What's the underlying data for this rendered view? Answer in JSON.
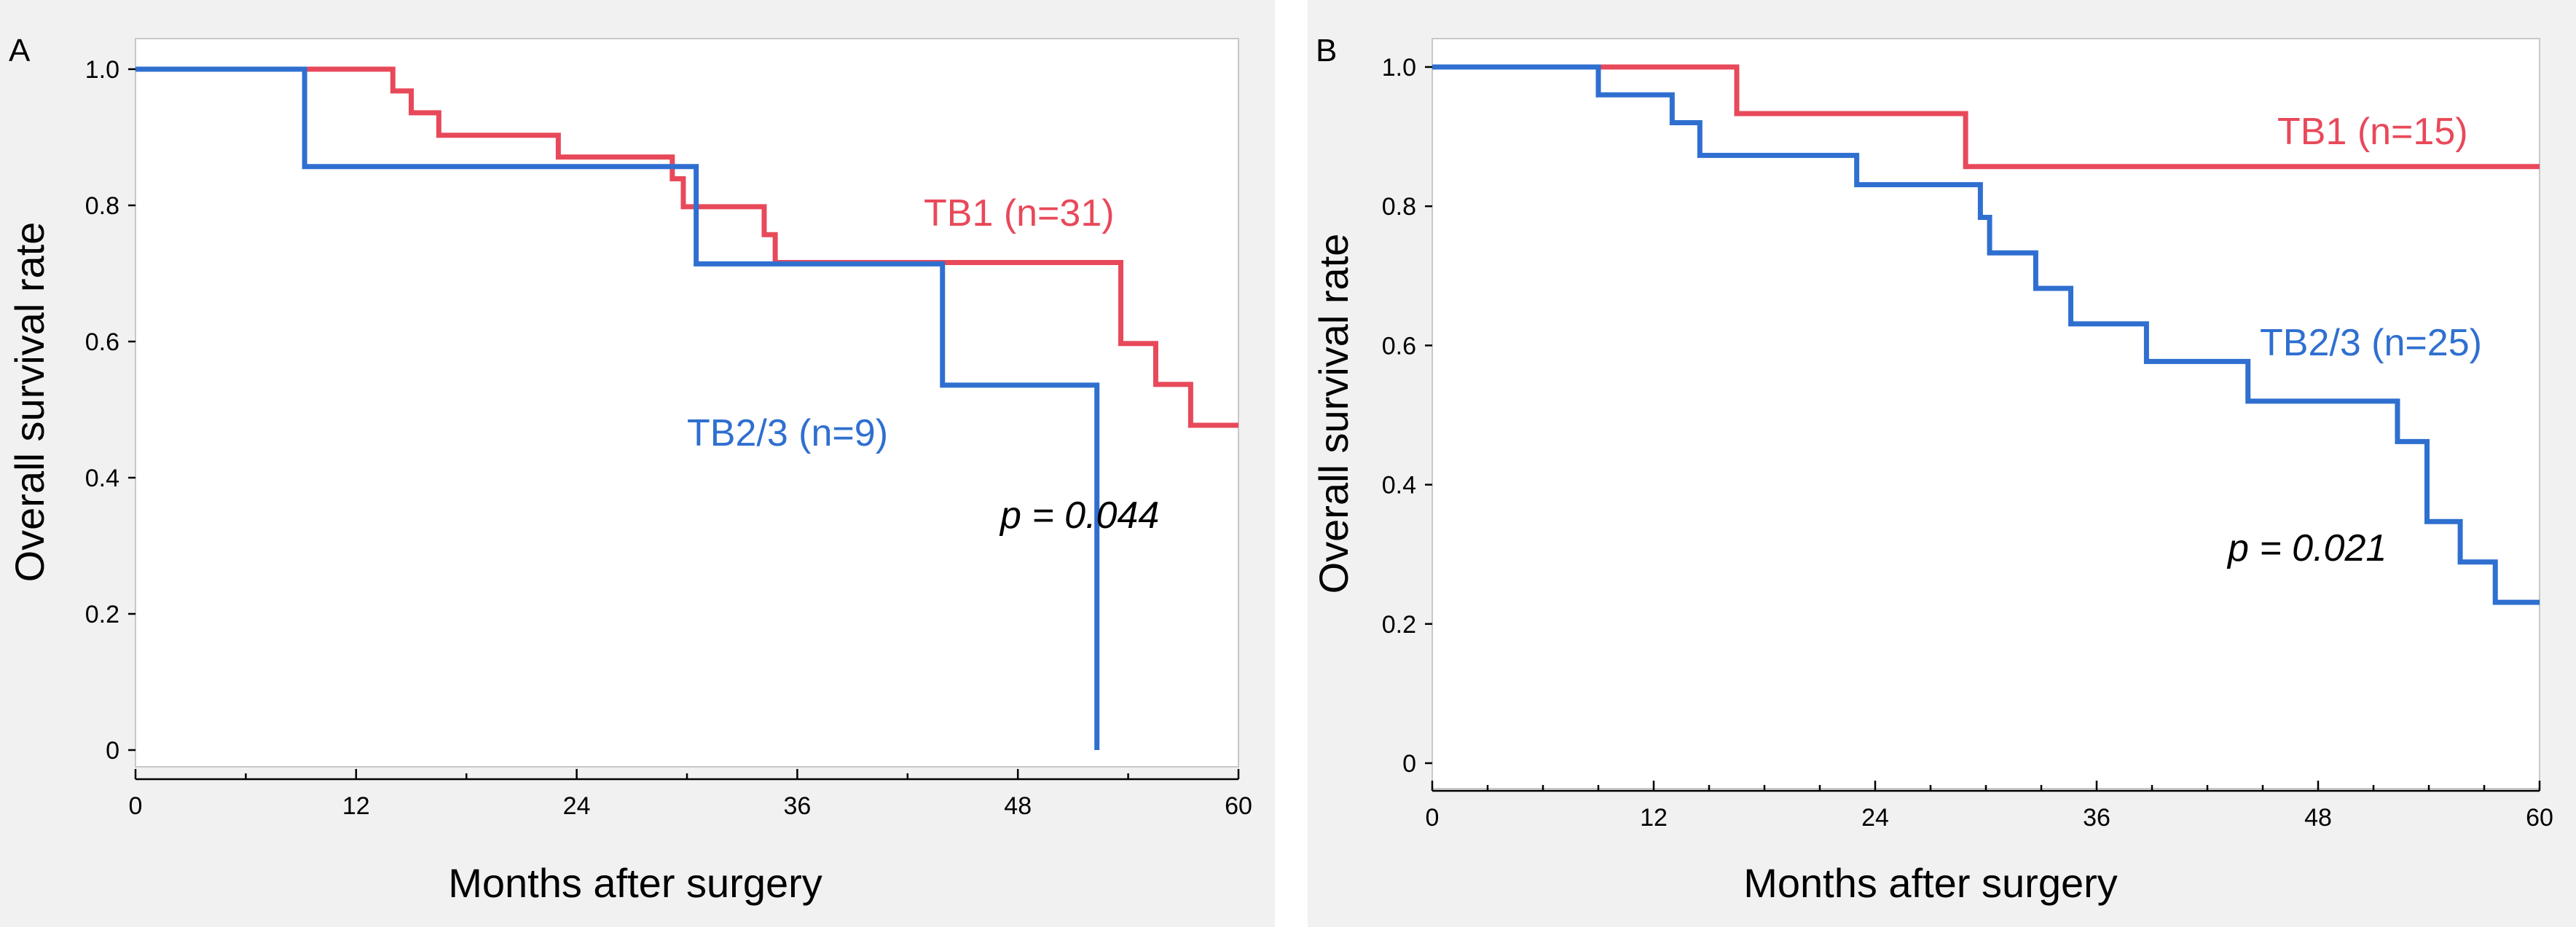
{
  "chart_data": [
    {
      "panel": "A",
      "type": "line",
      "xlabel": "Months after surgery",
      "ylabel": "Overall survival rate",
      "xlim": [
        0,
        60
      ],
      "ylim": [
        0,
        1.0
      ],
      "xticks": [
        "0",
        "12",
        "24",
        "36",
        "48",
        "60"
      ],
      "yticks": [
        "0",
        "0.2",
        "0.4",
        "0.6",
        "0.8",
        "1.0"
      ],
      "grid": false,
      "pvalue": "p = 0.044",
      "series": [
        {
          "name": "TB1 (n=31)",
          "color": "#e8495a",
          "x": [
            0,
            13.3,
            14.0,
            15.0,
            16.5,
            23.0,
            28.6,
            29.2,
            29.8,
            32.6,
            34.2,
            34.8,
            53.3,
            53.6,
            55.5,
            57.4,
            60
          ],
          "y": [
            1.0,
            1.0,
            0.968,
            0.936,
            0.903,
            0.871,
            0.871,
            0.839,
            0.798,
            0.798,
            0.757,
            0.716,
            0.716,
            0.597,
            0.537,
            0.477,
            0.477
          ]
        },
        {
          "name": "TB2/3 (n=9)",
          "color": "#2f6fd0",
          "x": [
            0,
            9.2,
            30.0,
            30.5,
            38.8,
            43.9,
            52.3,
            52.3
          ],
          "y": [
            1.0,
            0.857,
            0.857,
            0.714,
            0.714,
            0.536,
            0.268,
            0.0
          ]
        }
      ]
    },
    {
      "panel": "B",
      "type": "line",
      "xlabel": "Months after surgery",
      "ylabel": "Overall survival rate",
      "xlim": [
        0,
        60
      ],
      "ylim": [
        0,
        1.0
      ],
      "xticks": [
        "0",
        "12",
        "24",
        "36",
        "48",
        "60"
      ],
      "yticks": [
        "0",
        "0.2",
        "0.4",
        "0.6",
        "0.8",
        "1.0"
      ],
      "grid": false,
      "pvalue": "p = 0.021",
      "series": [
        {
          "name": "TB1 (n=15)",
          "color": "#e8495a",
          "x": [
            0,
            16.5,
            28.9,
            60
          ],
          "y": [
            1.0,
            0.933,
            0.857,
            0.857
          ]
        },
        {
          "name": "TB2/3 (n=25)",
          "color": "#2f6fd0",
          "x": [
            0,
            9.0,
            13.0,
            14.5,
            23.0,
            29.7,
            30.2,
            32.7,
            34.6,
            38.7,
            44.2,
            52.3,
            53.9,
            55.7,
            57.6,
            60
          ],
          "y": [
            1.0,
            0.96,
            0.92,
            0.873,
            0.831,
            0.784,
            0.733,
            0.682,
            0.631,
            0.577,
            0.52,
            0.462,
            0.347,
            0.289,
            0.231,
            0.231
          ]
        }
      ]
    }
  ]
}
